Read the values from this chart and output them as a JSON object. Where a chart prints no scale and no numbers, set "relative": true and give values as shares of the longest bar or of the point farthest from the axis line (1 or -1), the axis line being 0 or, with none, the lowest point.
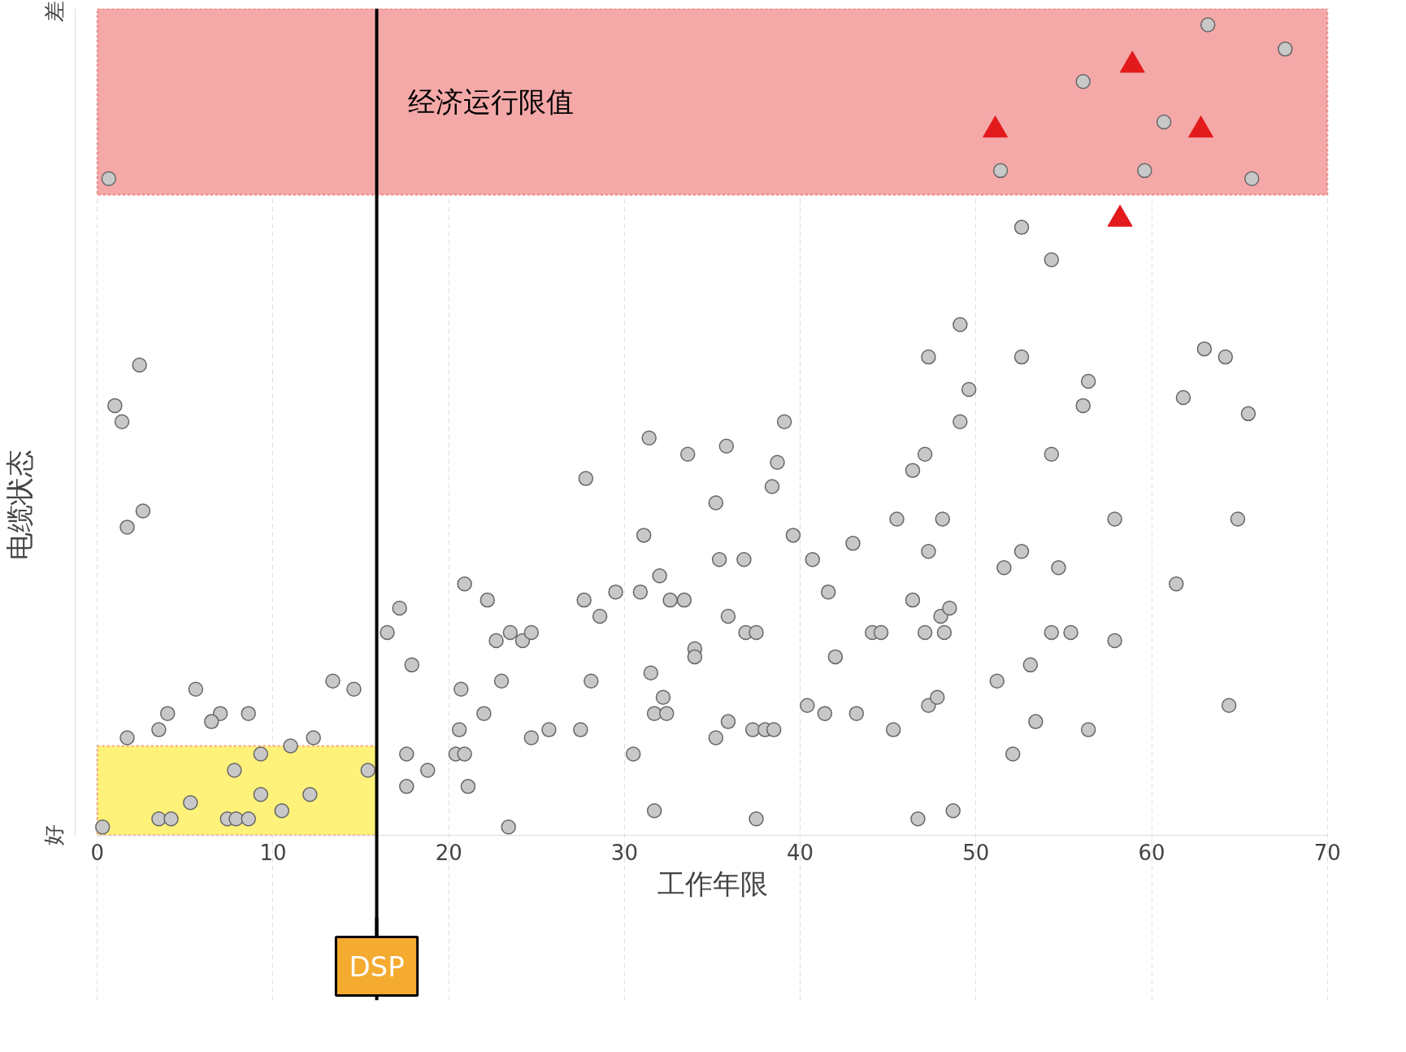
{
  "chart_data": {
    "type": "scatter",
    "xlabel": "工作年限",
    "ylabel": "电缆状态",
    "xlim": [
      0,
      70
    ],
    "xticks": [
      0,
      10,
      20,
      30,
      40,
      50,
      60,
      70
    ],
    "relative": true,
    "annotations": [
      "好",
      "差"
    ],
    "grid": "x",
    "bands": [
      {
        "axis": "y",
        "from": 0.79,
        "to": 1.02,
        "label": "经济运行限值",
        "color": "#f4a9a8"
      },
      {
        "axis": "y",
        "from": 0,
        "to": 0.11,
        "label": null,
        "color": "#fff27a"
      }
    ],
    "ref_lines": [
      {
        "axis": "x",
        "value": 15.9,
        "label": "DSP",
        "color": "#000000"
      }
    ],
    "series": [
      {
        "marker": "circle",
        "color": "#c8c8c8",
        "x": [
          0.65,
          51.4,
          56.1,
          63.2,
          67.6,
          60.7,
          59.6,
          65.7,
          52.6,
          54.3,
          49.1,
          47.3,
          52.6,
          63.0,
          64.2,
          2.4,
          1.0,
          1.4,
          49.6,
          56.4,
          56.1,
          61.8,
          65.5,
          39.1,
          49.1,
          31.4,
          33.6,
          35.8,
          38.7,
          47.1,
          54.3,
          46.4,
          27.8,
          2.6,
          1.7,
          35.2,
          38.4,
          45.5,
          48.1,
          57.9,
          64.9,
          31.1,
          39.6,
          43.0,
          40.7,
          35.4,
          36.8,
          47.3,
          52.6,
          51.6,
          54.7,
          61.4,
          20.9,
          22.2,
          27.7,
          29.5,
          30.9,
          32.0,
          32.6,
          33.4,
          28.6,
          41.6,
          46.4,
          17.2,
          16.5,
          22.7,
          23.5,
          24.2,
          24.7,
          35.9,
          36.9,
          37.5,
          34.0,
          34.0,
          44.1,
          44.6,
          47.1,
          48.0,
          48.5,
          48.2,
          54.3,
          55.4,
          57.9,
          42.0,
          17.9,
          23.0,
          28.1,
          13.4,
          14.6,
          5.6,
          20.7,
          31.5,
          32.2,
          51.2,
          53.1,
          4.0,
          7.0,
          6.5,
          8.6,
          22.0,
          31.7,
          32.4,
          35.9,
          40.4,
          41.4,
          43.2,
          47.3,
          47.8,
          64.4,
          3.5,
          1.7,
          12.3,
          20.6,
          24.7,
          25.7,
          27.5,
          35.2,
          37.3,
          38.0,
          38.5,
          45.3,
          53.4,
          56.4,
          52.1,
          20.4,
          20.9,
          17.6,
          18.8,
          30.5,
          17.6,
          21.1,
          31.7,
          37.5,
          46.7,
          48.7,
          23.4,
          9.3,
          11.0,
          7.8,
          15.4,
          5.3,
          9.3,
          12.1,
          10.5,
          0.3,
          3.5,
          4.2,
          7.4,
          7.9,
          8.6
        ],
        "values": [
          0.81,
          0.82,
          0.93,
          1,
          0.97,
          0.88,
          0.82,
          0.81,
          0.75,
          0.71,
          0.63,
          0.59,
          0.59,
          0.6,
          0.59,
          0.58,
          0.53,
          0.51,
          0.55,
          0.56,
          0.53,
          0.54,
          0.52,
          0.51,
          0.51,
          0.49,
          0.47,
          0.48,
          0.46,
          0.47,
          0.47,
          0.45,
          0.44,
          0.4,
          0.38,
          0.41,
          0.43,
          0.39,
          0.39,
          0.39,
          0.39,
          0.37,
          0.37,
          0.36,
          0.34,
          0.34,
          0.34,
          0.35,
          0.35,
          0.33,
          0.33,
          0.31,
          0.31,
          0.29,
          0.29,
          0.3,
          0.3,
          0.32,
          0.29,
          0.29,
          0.27,
          0.3,
          0.29,
          0.28,
          0.25,
          0.24,
          0.25,
          0.24,
          0.25,
          0.27,
          0.25,
          0.25,
          0.23,
          0.22,
          0.25,
          0.25,
          0.25,
          0.27,
          0.28,
          0.25,
          0.25,
          0.25,
          0.24,
          0.22,
          0.21,
          0.19,
          0.19,
          0.19,
          0.18,
          0.18,
          0.18,
          0.2,
          0.17,
          0.19,
          0.21,
          0.15,
          0.15,
          0.14,
          0.15,
          0.15,
          0.15,
          0.15,
          0.14,
          0.16,
          0.15,
          0.15,
          0.16,
          0.17,
          0.16,
          0.13,
          0.12,
          0.12,
          0.13,
          0.12,
          0.13,
          0.13,
          0.12,
          0.13,
          0.13,
          0.13,
          0.13,
          0.14,
          0.13,
          0.1,
          0.1,
          0.1,
          0.1,
          0.08,
          0.1,
          0.06,
          0.06,
          0.03,
          0.02,
          0.02,
          0.03,
          0.01,
          0.1,
          0.11,
          0.08,
          0.08,
          0.04,
          0.05,
          0.05,
          0.03,
          0.01,
          0.02,
          0.02,
          0.02,
          0.02,
          0.02
        ]
      },
      {
        "marker": "triangle",
        "color": "#e31a1c",
        "x": [
          51.1,
          58.9,
          62.8,
          58.2
        ],
        "values": [
          0.87,
          0.95,
          0.87,
          0.76
        ]
      }
    ]
  }
}
